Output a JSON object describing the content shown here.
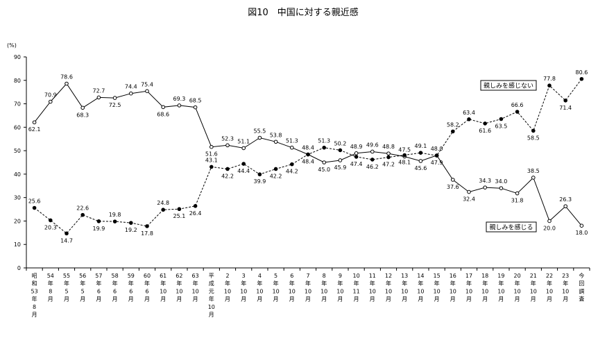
{
  "chart_data": {
    "type": "line",
    "title": "図10　中国に対する親近感",
    "ylabel": "(%)",
    "ylim": [
      0,
      90
    ],
    "yticks": [
      0,
      10,
      20,
      30,
      40,
      50,
      60,
      70,
      80,
      90
    ],
    "categories": [
      "昭和53年8月",
      "54年8月",
      "55年5月",
      "56年5月",
      "57年6月",
      "58年6月",
      "59年6月",
      "60年6月",
      "61年10月",
      "62年10月",
      "63年10月",
      "平成元年10月",
      "2年10月",
      "3年10月",
      "4年10月",
      "5年10月",
      "6年10月",
      "7年10月",
      "8年10月",
      "9年10月",
      "10年11月",
      "11年10月",
      "12年10月",
      "13年10月",
      "14年10月",
      "15年10月",
      "16年10月",
      "17年10月",
      "18年10月",
      "19年10月",
      "20年10月",
      "21年10月",
      "22年10月",
      "23年10月",
      "今回調査"
    ],
    "xtick_labels": [
      [
        "昭",
        "和",
        "53",
        "年",
        "8",
        "月"
      ],
      [
        "54",
        "年",
        "8",
        "月"
      ],
      [
        "55",
        "年",
        "5",
        "月"
      ],
      [
        "56",
        "年",
        "5",
        "月"
      ],
      [
        "57",
        "年",
        "6",
        "月"
      ],
      [
        "58",
        "年",
        "6",
        "月"
      ],
      [
        "59",
        "年",
        "6",
        "月"
      ],
      [
        "60",
        "年",
        "6",
        "月"
      ],
      [
        "61",
        "年",
        "10",
        "月"
      ],
      [
        "62",
        "年",
        "10",
        "月"
      ],
      [
        "63",
        "年",
        "10",
        "月"
      ],
      [
        "平",
        "成",
        "元",
        "年",
        "10",
        "月"
      ],
      [
        "2",
        "年",
        "10",
        "月"
      ],
      [
        "3",
        "年",
        "10",
        "月"
      ],
      [
        "4",
        "年",
        "10",
        "月"
      ],
      [
        "5",
        "年",
        "10",
        "月"
      ],
      [
        "6",
        "年",
        "10",
        "月"
      ],
      [
        "7",
        "年",
        "10",
        "月"
      ],
      [
        "8",
        "年",
        "10",
        "月"
      ],
      [
        "9",
        "年",
        "10",
        "月"
      ],
      [
        "10",
        "年",
        "11",
        "月"
      ],
      [
        "11",
        "年",
        "10",
        "月"
      ],
      [
        "12",
        "年",
        "10",
        "月"
      ],
      [
        "13",
        "年",
        "10",
        "月"
      ],
      [
        "14",
        "年",
        "10",
        "月"
      ],
      [
        "15",
        "年",
        "10",
        "月"
      ],
      [
        "16",
        "年",
        "10",
        "月"
      ],
      [
        "17",
        "年",
        "10",
        "月"
      ],
      [
        "18",
        "年",
        "10",
        "月"
      ],
      [
        "19",
        "年",
        "10",
        "月"
      ],
      [
        "20",
        "年",
        "10",
        "月"
      ],
      [
        "21",
        "年",
        "10",
        "月"
      ],
      [
        "22",
        "年",
        "10",
        "月"
      ],
      [
        "23",
        "年",
        "10",
        "月"
      ],
      [
        "今",
        "回",
        "調",
        "査"
      ]
    ],
    "series": [
      {
        "name": "親しみを感じる",
        "style": "solid",
        "marker": "open-circle",
        "color": "#000000",
        "values": [
          62.1,
          70.9,
          78.6,
          68.3,
          72.7,
          72.5,
          74.4,
          75.4,
          68.6,
          69.3,
          68.5,
          51.6,
          52.3,
          51.1,
          55.5,
          53.8,
          51.3,
          48.4,
          45.0,
          45.9,
          48.9,
          49.6,
          48.8,
          47.5,
          45.6,
          48.0,
          37.6,
          32.4,
          34.3,
          34.0,
          31.8,
          38.5,
          20.0,
          26.3,
          18.0
        ]
      },
      {
        "name": "親しみを感じない",
        "style": "dashed",
        "marker": "filled-circle",
        "color": "#000000",
        "values": [
          25.6,
          20.3,
          14.7,
          22.6,
          19.9,
          19.8,
          19.2,
          17.8,
          24.8,
          25.1,
          26.4,
          43.1,
          42.2,
          44.4,
          39.9,
          42.2,
          44.2,
          48.4,
          51.3,
          50.2,
          47.4,
          46.2,
          47.2,
          48.1,
          49.1,
          47.9,
          58.2,
          63.4,
          61.6,
          63.5,
          66.6,
          58.5,
          77.8,
          71.4,
          80.6
        ]
      }
    ],
    "labels_above": {
      "0": [
        false,
        true
      ],
      "1": [
        true,
        false
      ],
      "2": [
        true,
        false
      ],
      "3": [
        false,
        true
      ],
      "4": [
        true,
        false
      ],
      "5": [
        false,
        true
      ],
      "6": [
        true,
        false
      ],
      "7": [
        true,
        false
      ],
      "8": [
        false,
        true
      ],
      "9": [
        true,
        false
      ],
      "10": [
        true,
        false
      ],
      "11": [
        false,
        true
      ],
      "12": [
        true,
        false
      ],
      "13": [
        true,
        false
      ],
      "14": [
        true,
        false
      ],
      "15": [
        true,
        false
      ],
      "16": [
        true,
        false
      ],
      "17": [
        true,
        false
      ],
      "18": [
        false,
        true
      ],
      "19": [
        false,
        true
      ],
      "20": [
        true,
        false
      ],
      "21": [
        true,
        false
      ],
      "22": [
        true,
        false
      ],
      "23": [
        true,
        false
      ],
      "24": [
        false,
        true
      ],
      "25": [
        true,
        false
      ],
      "26": [
        false,
        true
      ],
      "27": [
        false,
        true
      ],
      "28": [
        true,
        false
      ],
      "29": [
        true,
        false
      ],
      "30": [
        false,
        true
      ],
      "31": [
        true,
        false
      ],
      "32": [
        false,
        true
      ],
      "33": [
        true,
        false
      ],
      "34": [
        false,
        true
      ]
    },
    "legend": [
      {
        "text": "親しみを感じない",
        "series": 1,
        "placement": "upper-right"
      },
      {
        "text": "親しみを感じる",
        "series": 0,
        "placement": "lower-right"
      }
    ],
    "grid": false
  }
}
